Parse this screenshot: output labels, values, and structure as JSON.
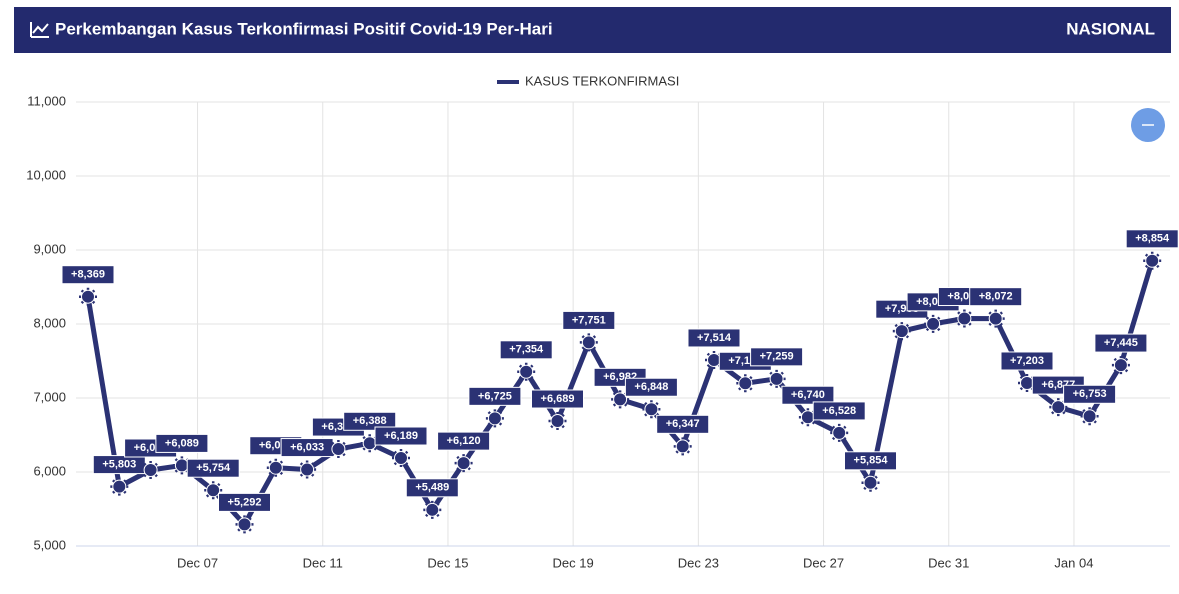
{
  "header": {
    "title": "Perkembangan Kasus Terkonfirmasi Positif Covid-19 Per-Hari",
    "badge": "NASIONAL"
  },
  "chart_data": {
    "type": "line",
    "categories": [
      null,
      null,
      null,
      null,
      "Dec 07",
      null,
      null,
      null,
      "Dec 11",
      null,
      null,
      null,
      "Dec 15",
      null,
      null,
      null,
      "Dec 19",
      null,
      null,
      null,
      "Dec 23",
      null,
      null,
      null,
      "Dec 27",
      null,
      null,
      null,
      "Dec 31",
      null,
      null,
      null,
      "Jan 04",
      null,
      null
    ],
    "series": [
      {
        "name": "KASUS TERKONFIRMASI",
        "color": "#2b3274",
        "values": [
          8369,
          5803,
          6027,
          6089,
          5754,
          5292,
          6058,
          6033,
          6310,
          6388,
          6189,
          5489,
          6120,
          6725,
          7354,
          6689,
          7751,
          6982,
          6848,
          6347,
          7514,
          7199,
          7259,
          6740,
          6528,
          5854,
          7903,
          8002,
          8074,
          8072,
          7203,
          6877,
          6753,
          7445,
          8854
        ],
        "value_labels": [
          "+8,369",
          "+5,803",
          "+6,027",
          "+6,089",
          "+5,754",
          "+5,292",
          "+6,058",
          "+6,033",
          "+6,310",
          "+6,388",
          "+6,189",
          "+5,489",
          "+6,120",
          "+6,725",
          "+7,354",
          "+6,689",
          "+7,751",
          "+6,982",
          "+6,848",
          "+6,347",
          "+7,514",
          "+7,199",
          "+7,259",
          "+6,740",
          "+6,528",
          "+5,854",
          "+7,903",
          "+8,002",
          "+8,074",
          "+8,072",
          "+7,203",
          "+6,877",
          "+6,753",
          "+7,445",
          "+8,854"
        ]
      }
    ],
    "ylim": [
      5000,
      11000
    ],
    "yticks": [
      {
        "value": 5000,
        "label": "5,000"
      },
      {
        "value": 6000,
        "label": "6,000"
      },
      {
        "value": 7000,
        "label": "7,000"
      },
      {
        "value": 8000,
        "label": "8,000"
      },
      {
        "value": 9000,
        "label": "9,000"
      },
      {
        "value": 10000,
        "label": "10,000"
      },
      {
        "value": 11000,
        "label": "11,000"
      }
    ],
    "grid": true,
    "legend": "top"
  }
}
